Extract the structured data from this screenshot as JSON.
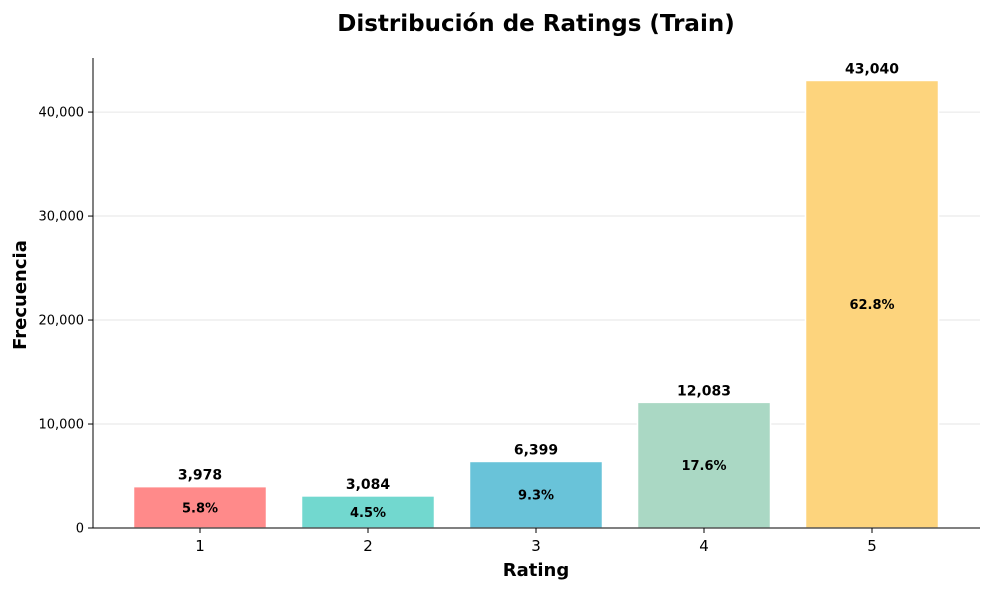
{
  "chart_data": {
    "type": "bar",
    "title": "Distribución de Ratings (Train)",
    "xlabel": "Rating",
    "ylabel": "Frecuencia",
    "categories": [
      "1",
      "2",
      "3",
      "4",
      "5"
    ],
    "values": [
      3978,
      3084,
      6399,
      12083,
      43040
    ],
    "value_labels": [
      "3,978",
      "3,084",
      "6,399",
      "12,083",
      "43,040"
    ],
    "percent_labels": [
      "5.8%",
      "4.5%",
      "9.3%",
      "17.6%",
      "62.8%"
    ],
    "colors": [
      "#ff8a8a",
      "#72d8cf",
      "#69c3d9",
      "#aad8c4",
      "#fdd47d"
    ],
    "ylim": [
      0,
      45200
    ],
    "yticks": [
      0,
      10000,
      20000,
      30000,
      40000
    ],
    "ytick_labels": [
      "0",
      "10,000",
      "20,000",
      "30,000",
      "40,000"
    ],
    "grid": true,
    "legend": "none"
  }
}
